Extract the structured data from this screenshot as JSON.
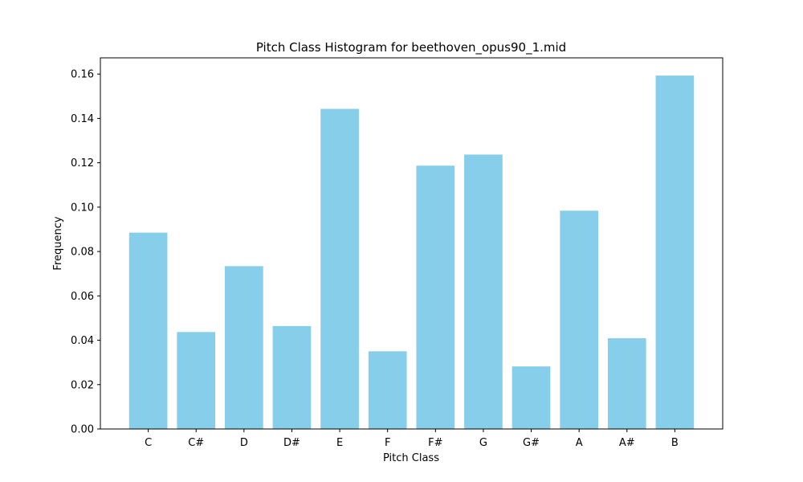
{
  "chart_data": {
    "type": "bar",
    "title": "Pitch Class Histogram for beethoven_opus90_1.mid",
    "xlabel": "Pitch Class",
    "ylabel": "Frequency",
    "categories": [
      "C",
      "C#",
      "D",
      "D#",
      "E",
      "F",
      "F#",
      "G",
      "G#",
      "A",
      "A#",
      "B"
    ],
    "values": [
      0.0885,
      0.0437,
      0.0734,
      0.0464,
      0.1443,
      0.035,
      0.1187,
      0.1237,
      0.0282,
      0.0984,
      0.0409,
      0.1593
    ],
    "ylim": [
      0,
      0.1673
    ],
    "yticks": [
      "0.00",
      "0.02",
      "0.04",
      "0.06",
      "0.08",
      "0.10",
      "0.12",
      "0.14",
      "0.16"
    ],
    "bar_color": "#87ceeb",
    "grid": false,
    "legend": "none"
  }
}
